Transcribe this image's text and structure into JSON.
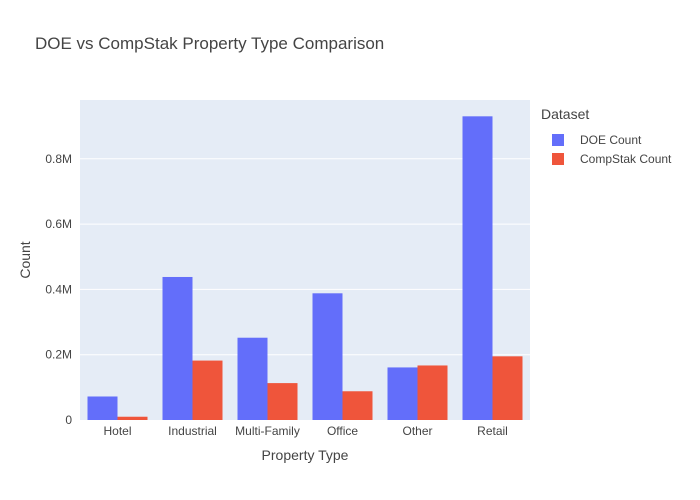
{
  "chart_data": {
    "type": "bar",
    "title": "DOE vs CompStak Property Type Comparison",
    "xlabel": "Property Type",
    "ylabel": "Count",
    "categories": [
      "Hotel",
      "Industrial",
      "Multi-Family",
      "Office",
      "Other",
      "Retail"
    ],
    "series": [
      {
        "name": "DOE Count",
        "color": "#636efa",
        "values": [
          72000,
          438000,
          252000,
          388000,
          161000,
          930000
        ]
      },
      {
        "name": "CompStak Count",
        "color": "#ef553b",
        "values": [
          10000,
          182000,
          113000,
          88000,
          167000,
          195000
        ]
      }
    ],
    "ylim": [
      0,
      980000
    ],
    "yticks": [
      0,
      200000,
      400000,
      600000,
      800000
    ],
    "ytick_labels": [
      "0",
      "0.2M",
      "0.4M",
      "0.6M",
      "0.8M"
    ],
    "grid": true,
    "legend": {
      "title": "Dataset",
      "position": "right"
    },
    "plot_bg": "#e5ecf6"
  }
}
